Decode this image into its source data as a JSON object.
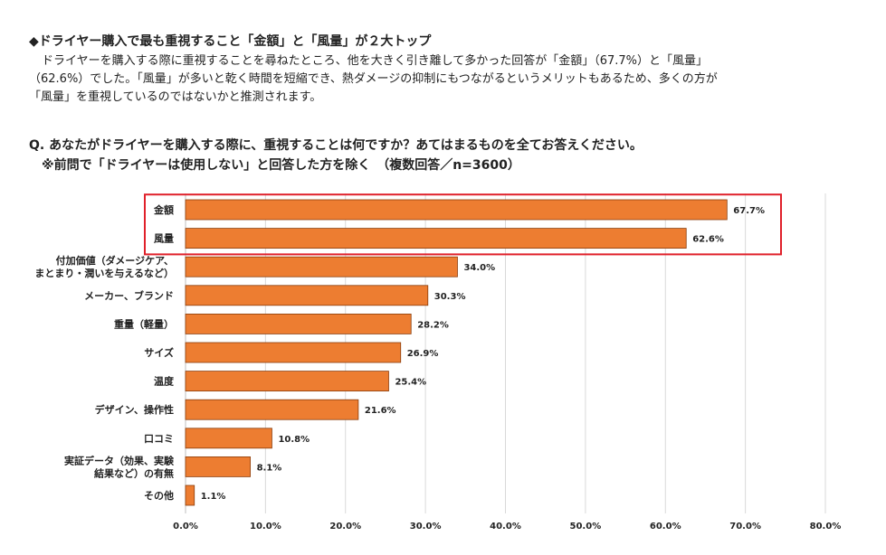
{
  "article": {
    "headline": "◆ドライヤー購入で最も重視すること「金額」と「風量」が２大トップ",
    "lead_lines": [
      "ドライヤーを購入する際に重視することを尋ねたところ、他を大きく引き離して多かった回答が「金額」（67.7%）と「風量」",
      "（62.6%）でした。「風量」が多いと乾く時間を短縮でき、熱ダメージの抑制にもつながるというメリットもあるため、多くの方が",
      "「風量」を重視しているのではないかと推測されます。"
    ]
  },
  "question": {
    "text": "Q. あなたがドライヤーを購入する際に、重視することは何ですか？あてはまるものを全てお答えください。",
    "note": "※前問で「ドライヤーは使用しない」と回答した方を除く　（複数回答／n=3600）"
  },
  "chart_data": {
    "type": "bar",
    "orientation": "horizontal",
    "categories": [
      [
        "金額"
      ],
      [
        "風量"
      ],
      [
        "付加価値（ダメージケア、",
        "まとまり・潤いを与えるなど）"
      ],
      [
        "メーカー、ブランド"
      ],
      [
        "重量（軽量）"
      ],
      [
        "サイズ"
      ],
      [
        "温度"
      ],
      [
        "デザイン、操作性"
      ],
      [
        "口コミ"
      ],
      [
        "実証データ（効果、実験",
        "結果など）の有無"
      ],
      [
        "その他"
      ]
    ],
    "values": [
      67.7,
      62.6,
      34.0,
      30.3,
      28.2,
      26.9,
      25.4,
      21.6,
      10.8,
      8.1,
      1.1
    ],
    "value_labels": [
      "67.7%",
      "62.6%",
      "34.0%",
      "30.3%",
      "28.2%",
      "26.9%",
      "25.4%",
      "21.6%",
      "10.8%",
      "8.1%",
      "1.1%"
    ],
    "xlim": [
      0,
      80
    ],
    "ticks": [
      0,
      10,
      20,
      30,
      40,
      50,
      60,
      70,
      80
    ],
    "tick_labels": [
      "0.0%",
      "10.0%",
      "20.0%",
      "30.0%",
      "40.0%",
      "50.0%",
      "60.0%",
      "70.0%",
      "80.0%"
    ],
    "highlight_count": 2,
    "grid": "vertical",
    "colors": {
      "bar": "#ED7D31",
      "bar_stroke": "#8a3d0c",
      "highlight": "#E0202A",
      "grid": "#d9d9d9",
      "text": "#222222"
    }
  }
}
